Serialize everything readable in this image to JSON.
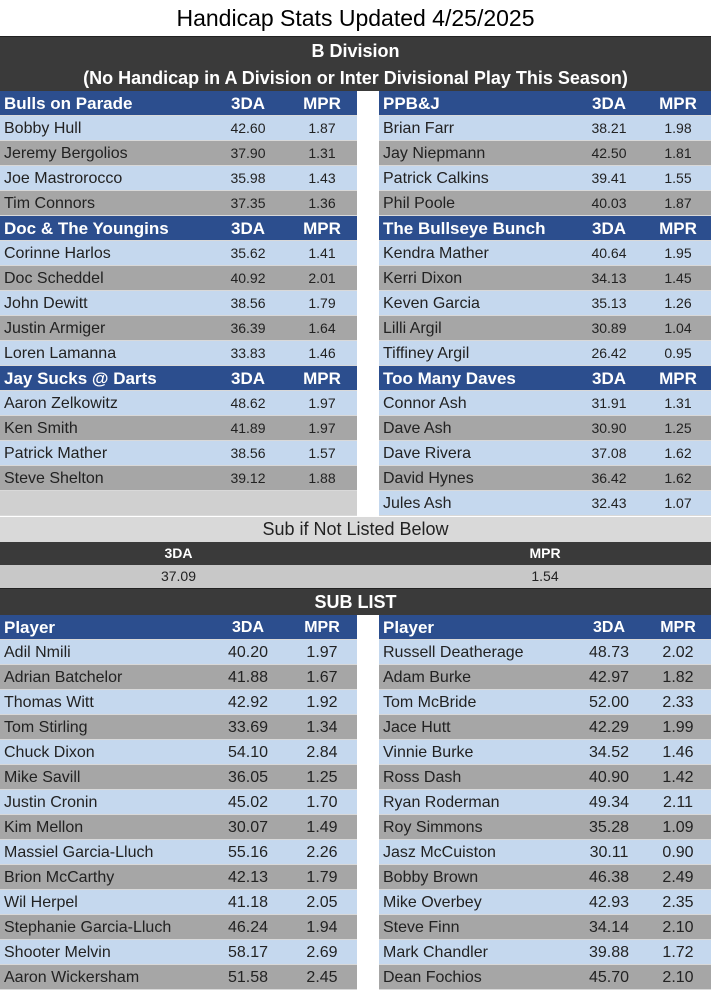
{
  "title": "Handicap Stats Updated 4/25/2025",
  "division": {
    "name": "B Division",
    "note": "(No Handicap in A Division or Inter Divisional Play This Season)"
  },
  "col_3da": "3DA",
  "col_mpr": "MPR",
  "teams_left": [
    {
      "name": "Bulls on Parade",
      "players": [
        {
          "name": "Bobby Hull",
          "da": "42.60",
          "mpr": "1.87"
        },
        {
          "name": "Jeremy Bergolios",
          "da": "37.90",
          "mpr": "1.31"
        },
        {
          "name": "Joe Mastrorocco",
          "da": "35.98",
          "mpr": "1.43"
        },
        {
          "name": "Tim Connors",
          "da": "37.35",
          "mpr": "1.36"
        }
      ]
    },
    {
      "name": "Doc & The Youngins",
      "players": [
        {
          "name": "Corinne Harlos",
          "da": "35.62",
          "mpr": "1.41"
        },
        {
          "name": "Doc Scheddel",
          "da": "40.92",
          "mpr": "2.01"
        },
        {
          "name": "John Dewitt",
          "da": "38.56",
          "mpr": "1.79"
        },
        {
          "name": "Justin Armiger",
          "da": "36.39",
          "mpr": "1.64"
        },
        {
          "name": "Loren Lamanna",
          "da": "33.83",
          "mpr": "1.46"
        }
      ]
    },
    {
      "name": "Jay Sucks @ Darts",
      "players": [
        {
          "name": "Aaron Zelkowitz",
          "da": "48.62",
          "mpr": "1.97"
        },
        {
          "name": "Ken Smith",
          "da": "41.89",
          "mpr": "1.97"
        },
        {
          "name": "Patrick Mather",
          "da": "38.56",
          "mpr": "1.57"
        },
        {
          "name": "Steve Shelton",
          "da": "39.12",
          "mpr": "1.88"
        }
      ]
    }
  ],
  "teams_right": [
    {
      "name": "PPB&J",
      "players": [
        {
          "name": "Brian Farr",
          "da": "38.21",
          "mpr": "1.98"
        },
        {
          "name": "Jay Niepmann",
          "da": "42.50",
          "mpr": "1.81"
        },
        {
          "name": "Patrick Calkins",
          "da": "39.41",
          "mpr": "1.55"
        },
        {
          "name": "Phil Poole",
          "da": "40.03",
          "mpr": "1.87"
        }
      ]
    },
    {
      "name": "The Bullseye Bunch",
      "players": [
        {
          "name": "Kendra Mather",
          "da": "40.64",
          "mpr": "1.95"
        },
        {
          "name": "Kerri Dixon",
          "da": "34.13",
          "mpr": "1.45"
        },
        {
          "name": "Keven Garcia",
          "da": "35.13",
          "mpr": "1.26"
        },
        {
          "name": "Lilli Argil",
          "da": "30.89",
          "mpr": "1.04"
        },
        {
          "name": "Tiffiney Argil",
          "da": "26.42",
          "mpr": "0.95"
        }
      ]
    },
    {
      "name": "Too Many Daves",
      "players": [
        {
          "name": "Connor Ash",
          "da": "31.91",
          "mpr": "1.31"
        },
        {
          "name": "Dave Ash",
          "da": "30.90",
          "mpr": "1.25"
        },
        {
          "name": "Dave Rivera",
          "da": "37.08",
          "mpr": "1.62"
        },
        {
          "name": "David Hynes",
          "da": "36.42",
          "mpr": "1.62"
        },
        {
          "name": "Jules Ash",
          "da": "32.43",
          "mpr": "1.07"
        }
      ]
    }
  ],
  "sub_default": {
    "note": "Sub if Not Listed Below",
    "da_label": "3DA",
    "mpr_label": "MPR",
    "da": "37.09",
    "mpr": "1.54"
  },
  "sub_list": {
    "title": "SUB LIST",
    "player_label": "Player",
    "left": [
      {
        "name": "Adil Nmili",
        "da": "40.20",
        "mpr": "1.97"
      },
      {
        "name": "Adrian Batchelor",
        "da": "41.88",
        "mpr": "1.67"
      },
      {
        "name": "Thomas Witt",
        "da": "42.92",
        "mpr": "1.92"
      },
      {
        "name": "Tom Stirling",
        "da": "33.69",
        "mpr": "1.34"
      },
      {
        "name": "Chuck Dixon",
        "da": "54.10",
        "mpr": "2.84"
      },
      {
        "name": "Mike Savill",
        "da": "36.05",
        "mpr": "1.25"
      },
      {
        "name": "Justin Cronin",
        "da": "45.02",
        "mpr": "1.70"
      },
      {
        "name": "Kim Mellon",
        "da": "30.07",
        "mpr": "1.49"
      },
      {
        "name": "Massiel Garcia-Lluch",
        "da": "55.16",
        "mpr": "2.26"
      },
      {
        "name": "Brion McCarthy",
        "da": "42.13",
        "mpr": "1.79"
      },
      {
        "name": "Wil Herpel",
        "da": "41.18",
        "mpr": "2.05"
      },
      {
        "name": "Stephanie Garcia-Lluch",
        "da": "46.24",
        "mpr": "1.94"
      },
      {
        "name": "Shooter Melvin",
        "da": "58.17",
        "mpr": "2.69"
      },
      {
        "name": "Aaron Wickersham",
        "da": "51.58",
        "mpr": "2.45"
      }
    ],
    "right": [
      {
        "name": "Russell Deatherage",
        "da": "48.73",
        "mpr": "2.02"
      },
      {
        "name": "Adam Burke",
        "da": "42.97",
        "mpr": "1.82"
      },
      {
        "name": "Tom McBride",
        "da": "52.00",
        "mpr": "2.33"
      },
      {
        "name": "Jace Hutt",
        "da": "42.29",
        "mpr": "1.99"
      },
      {
        "name": "Vinnie Burke",
        "da": "34.52",
        "mpr": "1.46"
      },
      {
        "name": "Ross Dash",
        "da": "40.90",
        "mpr": "1.42"
      },
      {
        "name": "Ryan Roderman",
        "da": "49.34",
        "mpr": "2.11"
      },
      {
        "name": "Roy Simmons",
        "da": "35.28",
        "mpr": "1.09"
      },
      {
        "name": "Jasz McCuiston",
        "da": "30.11",
        "mpr": "0.90"
      },
      {
        "name": "Bobby Brown",
        "da": "46.38",
        "mpr": "2.49"
      },
      {
        "name": "Mike Overbey",
        "da": "42.93",
        "mpr": "2.35"
      },
      {
        "name": "Steve Finn",
        "da": "34.14",
        "mpr": "2.10"
      },
      {
        "name": "Mark Chandler",
        "da": "39.88",
        "mpr": "1.72"
      },
      {
        "name": "Dean Fochios",
        "da": "45.70",
        "mpr": "2.10"
      }
    ]
  }
}
